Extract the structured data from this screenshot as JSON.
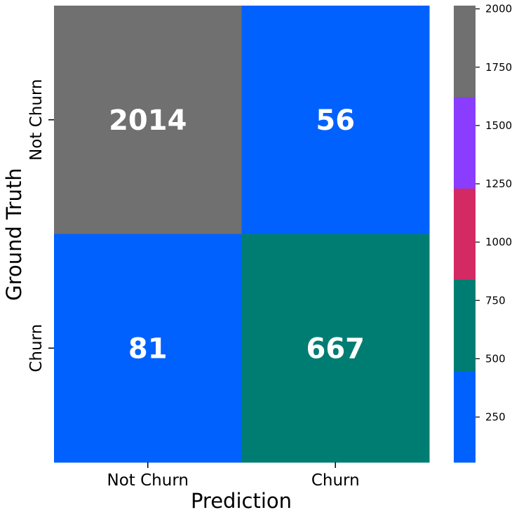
{
  "chart_data": {
    "type": "heatmap",
    "xlabel": "Prediction",
    "ylabel": "Ground Truth",
    "x_categories": [
      "Not Churn",
      "Churn"
    ],
    "y_categories": [
      "Not Churn",
      "Churn"
    ],
    "values": [
      [
        2014,
        56
      ],
      [
        81,
        667
      ]
    ],
    "colorbar": {
      "min": 56,
      "max": 2014,
      "ticks": [
        "250",
        "500",
        "750",
        "1000",
        "1250",
        "1500",
        "1750",
        "2000"
      ],
      "bands": [
        {
          "from": 56,
          "to": 448,
          "color": "#0061FF"
        },
        {
          "from": 448,
          "to": 840,
          "color": "#007D73"
        },
        {
          "from": 840,
          "to": 1231,
          "color": "#D42A64"
        },
        {
          "from": 1231,
          "to": 1622,
          "color": "#8A3DFF"
        },
        {
          "from": 1622,
          "to": 2014,
          "color": "#707070"
        }
      ]
    }
  }
}
